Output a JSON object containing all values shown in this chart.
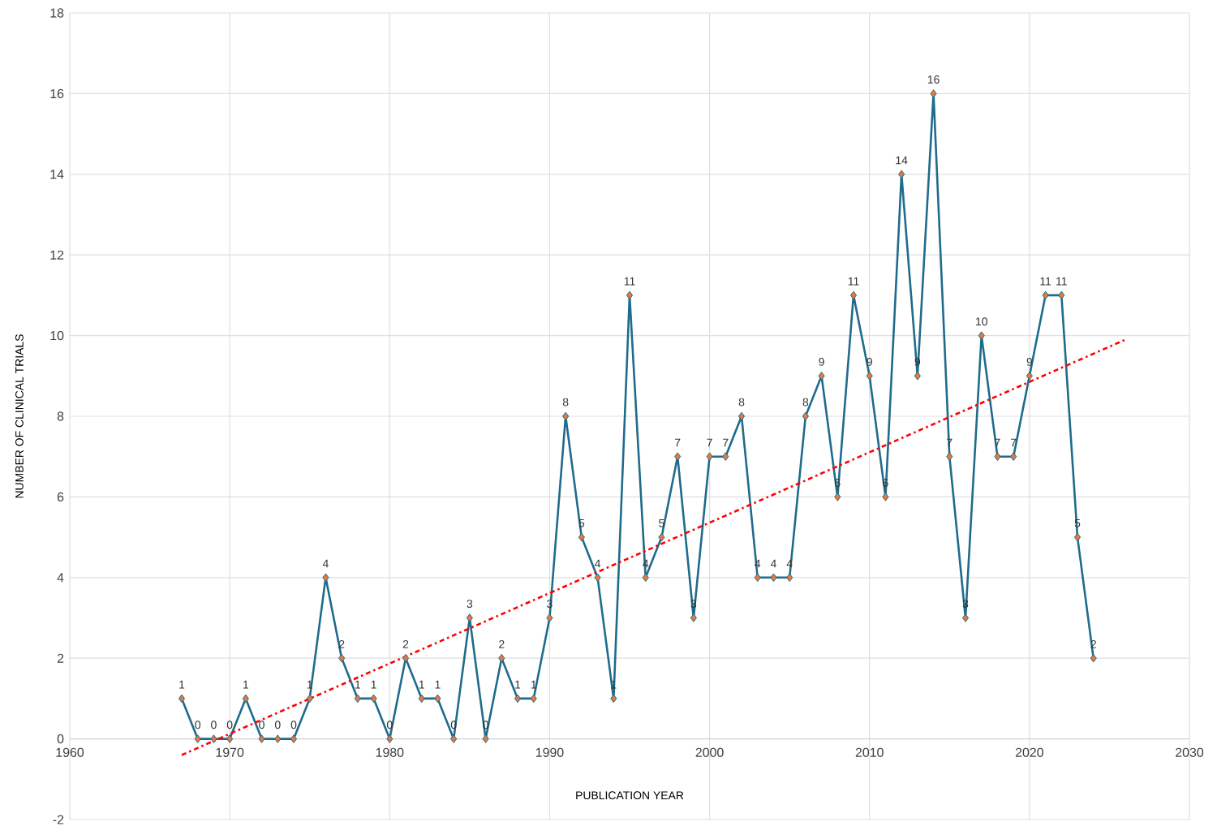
{
  "chart_data": {
    "type": "line",
    "xlabel": "PUBLICATION YEAR",
    "ylabel": "NUMBER OF CLINICAL TRIALS",
    "x": [
      1967,
      1968,
      1969,
      1970,
      1971,
      1972,
      1973,
      1974,
      1975,
      1976,
      1977,
      1978,
      1979,
      1980,
      1981,
      1982,
      1983,
      1984,
      1985,
      1986,
      1987,
      1988,
      1989,
      1990,
      1991,
      1992,
      1993,
      1994,
      1995,
      1996,
      1997,
      1998,
      1999,
      2000,
      2001,
      2002,
      2003,
      2004,
      2005,
      2006,
      2007,
      2008,
      2009,
      2010,
      2011,
      2012,
      2013,
      2014,
      2015,
      2016,
      2017,
      2018,
      2019,
      2020,
      2021,
      2022,
      2023,
      2024
    ],
    "series": [
      {
        "color": "#1f6b8c",
        "marker": "diamond",
        "data_labels": true,
        "values": [
          1,
          0,
          0,
          0,
          1,
          0,
          0,
          0,
          1,
          4,
          2,
          1,
          1,
          0,
          2,
          1,
          1,
          0,
          3,
          0,
          2,
          1,
          1,
          3,
          8,
          5,
          4,
          1,
          11,
          4,
          5,
          7,
          3,
          7,
          7,
          8,
          4,
          4,
          4,
          8,
          9,
          6,
          11,
          9,
          6,
          14,
          9,
          16,
          7,
          3,
          10,
          7,
          7,
          9,
          11,
          11,
          5,
          2
        ]
      },
      {
        "type": "line",
        "color": "#ff0000",
        "marker": "none",
        "line_style": "dashed",
        "x": [
          1967,
          2026
        ],
        "values": [
          -0.4,
          9.9
        ]
      }
    ],
    "xlim": [
      1960,
      2030
    ],
    "xticks": [
      1960,
      1970,
      1980,
      1990,
      2000,
      2010,
      2020,
      2030
    ],
    "ylim": [
      -2,
      18
    ],
    "yticks": [
      -2,
      0,
      2,
      4,
      6,
      8,
      10,
      12,
      14,
      16,
      18
    ],
    "grid": true
  }
}
